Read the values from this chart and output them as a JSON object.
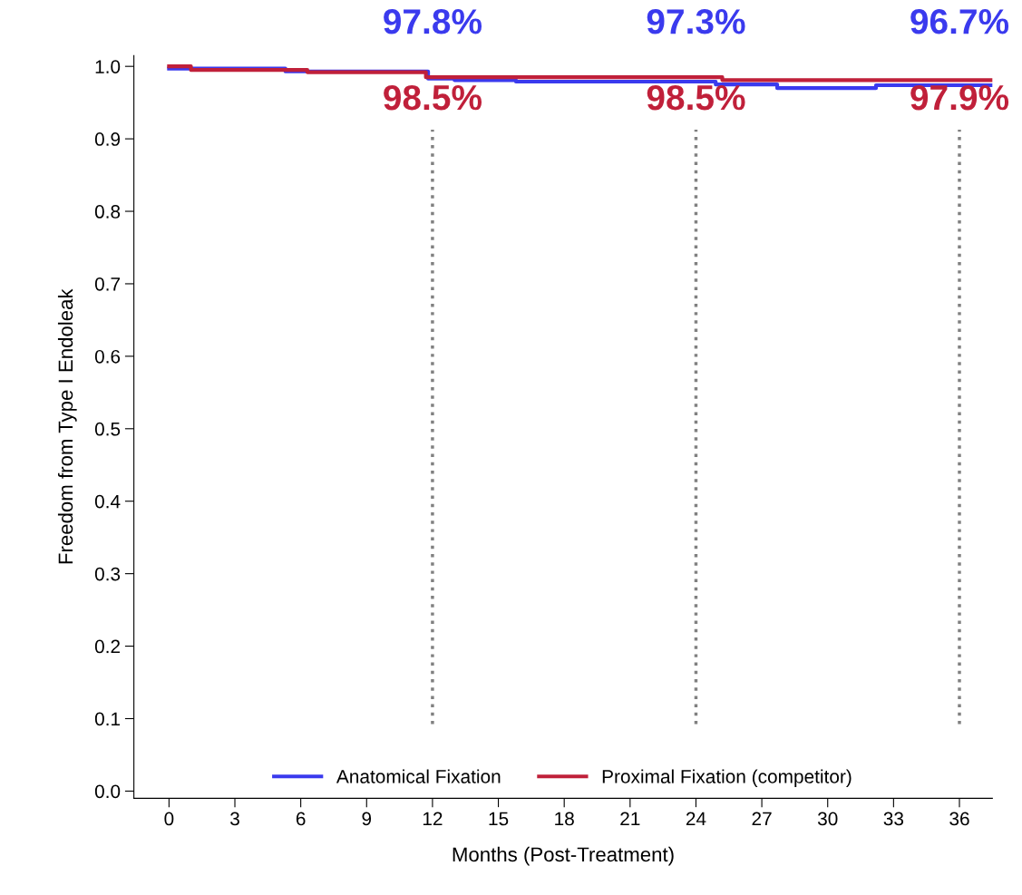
{
  "chart_data": {
    "type": "step",
    "xlabel": "Months (Post-Treatment)",
    "ylabel": "Freedom from Type I Endoleak",
    "series": [
      {
        "name": "Anatomical Fixation",
        "color": "#3a3aee",
        "x": [
          0,
          5.3,
          11.8,
          13.0,
          15.8,
          24.9,
          27.7,
          32.2,
          37.5
        ],
        "values": [
          0.997,
          0.993,
          0.983,
          0.981,
          0.979,
          0.975,
          0.97,
          0.974,
          0.974
        ]
      },
      {
        "name": "Proximal Fixation (competitor)",
        "color": "#c0203a",
        "x": [
          0,
          1.0,
          6.3,
          11.7,
          25.2,
          37.5
        ],
        "values": [
          1.0,
          0.995,
          0.992,
          0.985,
          0.981,
          0.981
        ]
      }
    ],
    "xlim": [
      -1.6,
      37.5
    ],
    "ylim": [
      -0.01,
      1.015
    ],
    "xticks": [
      0,
      3,
      6,
      9,
      12,
      15,
      18,
      21,
      24,
      27,
      30,
      33,
      36
    ],
    "yticks": [
      {
        "value": 0,
        "label": "0.0"
      },
      0.1,
      0.2,
      0.3,
      0.4,
      0.5,
      0.6,
      0.7,
      0.8,
      0.9,
      {
        "value": 1,
        "label": "1.0"
      }
    ],
    "ref_lines": [
      {
        "axis": "x",
        "value": 12,
        "color": "#808080",
        "line_style": "dotted"
      },
      {
        "axis": "x",
        "value": 24,
        "color": "#808080",
        "line_style": "dotted"
      },
      {
        "axis": "x",
        "value": 36,
        "color": "#808080",
        "line_style": "dotted"
      }
    ],
    "annotations": [
      "97.8%",
      "97.3%",
      "96.7%",
      "98.5%",
      "98.5%",
      "97.9%"
    ],
    "legend": "bottom",
    "grid": false,
    "line_style": "solid",
    "marker": "none"
  }
}
